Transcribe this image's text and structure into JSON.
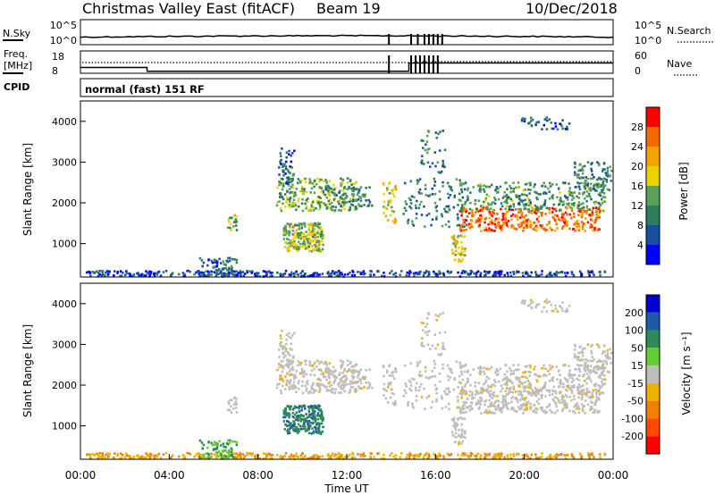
{
  "header": {
    "title": "Christmas Valley East (fitACF)",
    "beam": "Beam 19",
    "date": "10/Dec/2018"
  },
  "noise_panel": {
    "left_label": "N.Sky",
    "left_ticks": [
      "10^5",
      "10^0"
    ],
    "right_ticks": [
      "10^5",
      "10^0"
    ],
    "right_label": "N.Search"
  },
  "freq_panel": {
    "left_label_line1": "Freq.",
    "left_label_line2": "[MHz]",
    "left_ticks": [
      "18",
      "8"
    ],
    "right_ticks": [
      "60",
      "0"
    ],
    "right_label": "Nave",
    "cpid_label": "CPID",
    "cpid_text": "normal (fast) 151 RF"
  },
  "colors": {
    "power_scale": [
      "#0000ff",
      "#1a4fa0",
      "#2e7d5b",
      "#5aa05a",
      "#e8d200",
      "#f5a300",
      "#f06a00",
      "#ff0000"
    ],
    "velocity_scale": [
      "#0000d0",
      "#1e5aa8",
      "#2e8b57",
      "#66cc33",
      "#bebebe",
      "#f0b000",
      "#f08000",
      "#ff4a00",
      "#ff0000"
    ]
  },
  "chart_data": [
    {
      "type": "heatmap",
      "name": "power",
      "ylabel": "Slant Range [km]",
      "ylim": [
        180,
        4500
      ],
      "y_ticks": [
        "1000",
        "2000",
        "3000",
        "4000"
      ],
      "x_range_hours": [
        0,
        24
      ],
      "x_ticks": [
        "00:00",
        "04:00",
        "08:00",
        "12:00",
        "16:00",
        "20:00",
        "00:00"
      ],
      "colorbar_label": "Power [dB]",
      "colorbar_ticks": [
        "4",
        "8",
        "12",
        "16",
        "20",
        "24",
        "28"
      ],
      "colorbar_range": [
        0,
        32
      ]
    },
    {
      "type": "heatmap",
      "name": "velocity",
      "ylabel": "Slant Range [km]",
      "ylim": [
        180,
        4500
      ],
      "y_ticks": [
        "1000",
        "2000",
        "3000",
        "4000"
      ],
      "x_range_hours": [
        0,
        24
      ],
      "x_ticks": [
        "00:00",
        "04:00",
        "08:00",
        "12:00",
        "16:00",
        "20:00",
        "00:00"
      ],
      "xlabel": "Time UT",
      "colorbar_label": "Velocity [m s⁻¹]",
      "colorbar_ticks": [
        "200",
        "100",
        "50",
        "15",
        "-15",
        "-50",
        "-100",
        "-200"
      ]
    }
  ]
}
